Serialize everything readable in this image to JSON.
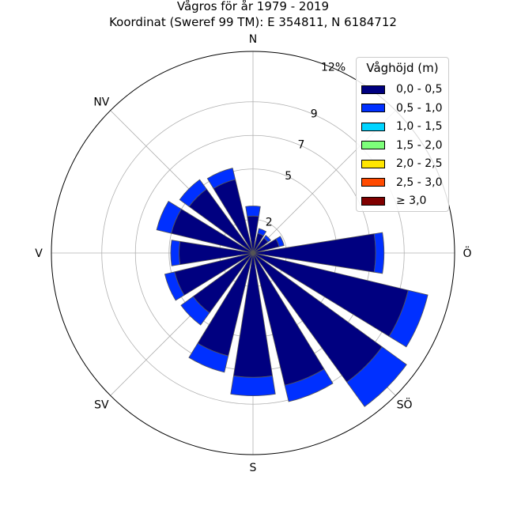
{
  "title": "Vågros för år 1979 - 2019",
  "subtitle": "Koordinat (Sweref 99 TM): E 354811, N 6184712",
  "chart_data": {
    "type": "polar-bar",
    "directions_deg": [
      0,
      22.5,
      45,
      67.5,
      90,
      112.5,
      135,
      157.5,
      180,
      202.5,
      225,
      247.5,
      270,
      292.5,
      315,
      337.5
    ],
    "compass_labels": [
      {
        "label": "N",
        "angle": 0
      },
      {
        "label": "Ö",
        "angle": 90
      },
      {
        "label": "SÖ",
        "angle": 135
      },
      {
        "label": "S",
        "angle": 180
      },
      {
        "label": "SV",
        "angle": 225
      },
      {
        "label": "V",
        "angle": 270
      },
      {
        "label": "NV",
        "angle": 315
      }
    ],
    "radial_ticks": [
      {
        "value": 2,
        "label": "2"
      },
      {
        "value": 5,
        "label": "5"
      },
      {
        "value": 7,
        "label": "7"
      },
      {
        "value": 9,
        "label": "9"
      },
      {
        "value": 12,
        "label": "12%"
      }
    ],
    "rmax": 12,
    "legend_title": "Våghöjd (m)",
    "legend_position": "top-right",
    "series": [
      {
        "name": "0,0 - 0,5",
        "color": "#000080",
        "values": [
          2.2,
          1.2,
          1.1,
          1.6,
          7.3,
          9.5,
          9.5,
          8.1,
          7.4,
          6.3,
          4.4,
          4.8,
          4.4,
          5.0,
          4.7,
          4.5
        ]
      },
      {
        "name": "0,5 - 1,0",
        "color": "#0030ff",
        "values": [
          0.6,
          0.3,
          0.2,
          0.3,
          0.5,
          1.2,
          1.8,
          1.0,
          1.1,
          1.0,
          0.9,
          0.6,
          0.5,
          0.9,
          0.7,
          0.7
        ]
      },
      {
        "name": "1,0 - 1,5",
        "color": "#00d4ff",
        "values": [
          0,
          0,
          0,
          0,
          0,
          0,
          0,
          0,
          0,
          0,
          0,
          0,
          0,
          0,
          0,
          0
        ]
      },
      {
        "name": "1,5 - 2,0",
        "color": "#7dff7a",
        "values": [
          0,
          0,
          0,
          0,
          0,
          0,
          0,
          0,
          0,
          0,
          0,
          0,
          0,
          0,
          0,
          0
        ]
      },
      {
        "name": "2,0 - 2,5",
        "color": "#ffe600",
        "values": [
          0,
          0,
          0,
          0,
          0,
          0,
          0,
          0,
          0,
          0,
          0,
          0,
          0,
          0,
          0,
          0
        ]
      },
      {
        "name": "2,5 - 3,0",
        "color": "#ff4a00",
        "values": [
          0,
          0,
          0,
          0,
          0,
          0,
          0,
          0,
          0,
          0,
          0,
          0,
          0,
          0,
          0,
          0
        ]
      },
      {
        "name": "≥ 3,0",
        "color": "#800000",
        "values": [
          0,
          0,
          0,
          0,
          0,
          0,
          0,
          0,
          0,
          0,
          0,
          0,
          0,
          0,
          0,
          0
        ]
      }
    ]
  }
}
